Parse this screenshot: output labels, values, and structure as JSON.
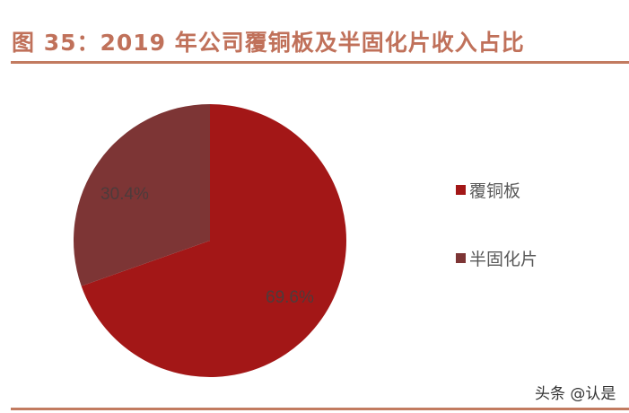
{
  "title": "图 35：2019 年公司覆铜板及半固化片收入占比",
  "chart_data": {
    "type": "pie",
    "title": "图 35：2019 年公司覆铜板及半固化片收入占比",
    "categories": [
      "覆铜板",
      "半固化片"
    ],
    "values": [
      69.6,
      30.4
    ],
    "labels": [
      "69.6%",
      "30.4%"
    ],
    "colors": [
      "#a31717",
      "#7d3535"
    ],
    "start_angle": "12 o'clock, clockwise",
    "legend_position": "right"
  },
  "legend": {
    "items": [
      {
        "label": "覆铜板",
        "color": "#a31717"
      },
      {
        "label": "半固化片",
        "color": "#7d3535"
      }
    ]
  },
  "slices": {
    "a": {
      "label": "69.6%"
    },
    "b": {
      "label": "30.4%"
    }
  },
  "watermark": "头条 @认是"
}
